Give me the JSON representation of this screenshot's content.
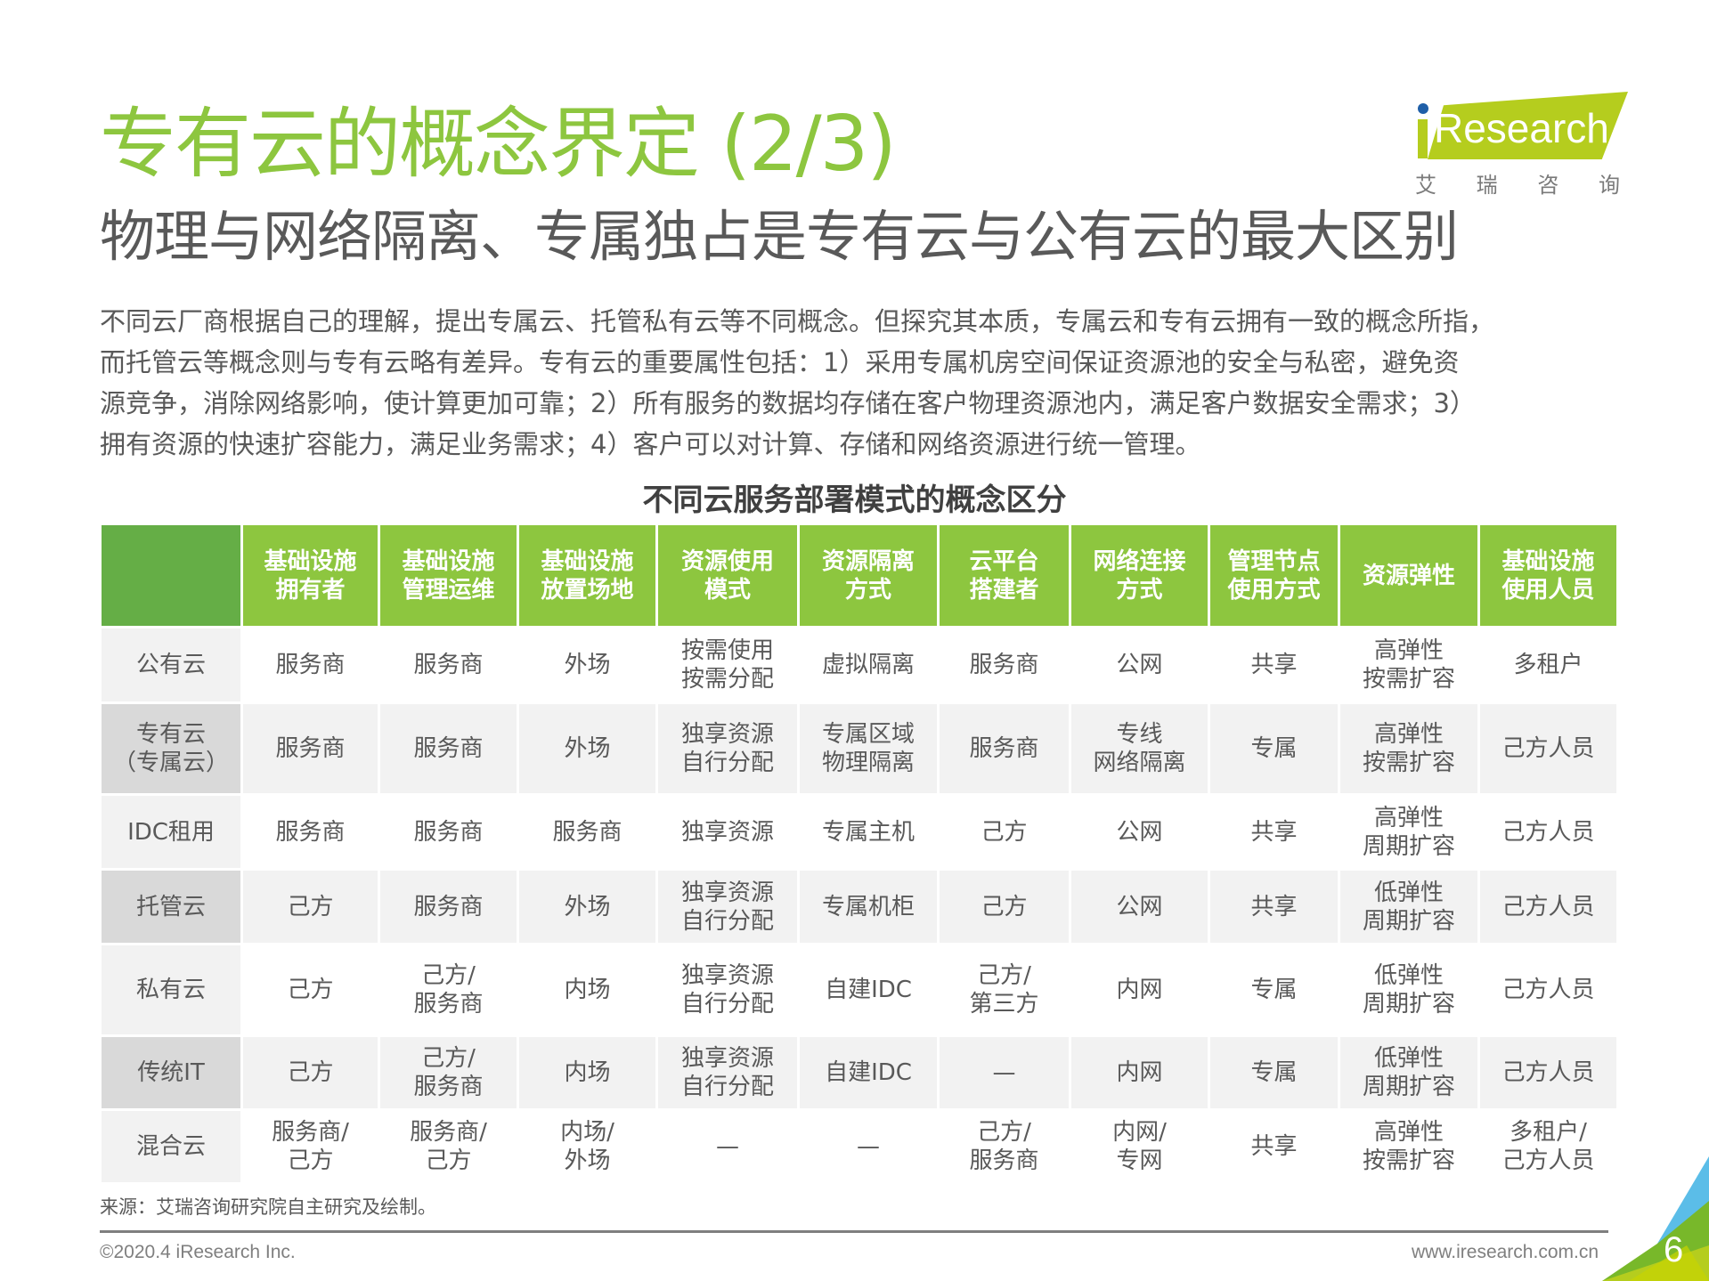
{
  "header": {
    "title": "专有云的概念界定 (2/3)",
    "subtitle": "物理与网络隔离、专属独占是专有云与公有云的最大区别"
  },
  "logo": {
    "wordmark": "Research",
    "chinese": [
      "艾",
      "瑞",
      "咨",
      "询"
    ]
  },
  "intro": {
    "lines": [
      "不同云厂商根据自己的理解，提出专属云、托管私有云等不同概念。但探究其本质，专属云和专有云拥有一致的概念所指，",
      "而托管云等概念则与专有云略有差异。专有云的重要属性包括：1）采用专属机房空间保证资源池的安全与私密，避免资",
      "源竞争，消除网络影响，使计算更加可靠；2）所有服务的数据均存储在客户物理资源池内，满足客户数据安全需求；3）",
      "拥有资源的快速扩容能力，满足业务需求；4）客户可以对计算、存储和网络资源进行统一管理。"
    ]
  },
  "table": {
    "title": "不同云服务部署模式的概念区分",
    "columns": [
      {
        "l1": "",
        "l2": ""
      },
      {
        "l1": "基础设施",
        "l2": "拥有者"
      },
      {
        "l1": "基础设施",
        "l2": "管理运维"
      },
      {
        "l1": "基础设施",
        "l2": "放置场地"
      },
      {
        "l1": "资源使用",
        "l2": "模式"
      },
      {
        "l1": "资源隔离",
        "l2": "方式"
      },
      {
        "l1": "云平台",
        "l2": "搭建者"
      },
      {
        "l1": "网络连接",
        "l2": "方式"
      },
      {
        "l1": "管理节点",
        "l2": "使用方式"
      },
      {
        "l1": "资源弹性",
        "l2": ""
      },
      {
        "l1": "基础设施",
        "l2": "使用人员"
      }
    ],
    "rows": [
      {
        "cells": [
          [
            "公有云"
          ],
          [
            "服务商"
          ],
          [
            "服务商"
          ],
          [
            "外场"
          ],
          [
            "按需使用",
            "按需分配"
          ],
          [
            "虚拟隔离"
          ],
          [
            "服务商"
          ],
          [
            "公网"
          ],
          [
            "共享"
          ],
          [
            "高弹性",
            "按需扩容"
          ],
          [
            "多租户"
          ]
        ]
      },
      {
        "cells": [
          [
            "专有云",
            "（专属云）"
          ],
          [
            "服务商"
          ],
          [
            "服务商"
          ],
          [
            "外场"
          ],
          [
            "独享资源",
            "自行分配"
          ],
          [
            "专属区域",
            "物理隔离"
          ],
          [
            "服务商"
          ],
          [
            "专线",
            "网络隔离"
          ],
          [
            "专属"
          ],
          [
            "高弹性",
            "按需扩容"
          ],
          [
            "己方人员"
          ]
        ]
      },
      {
        "cells": [
          [
            "IDC租用"
          ],
          [
            "服务商"
          ],
          [
            "服务商"
          ],
          [
            "服务商"
          ],
          [
            "独享资源"
          ],
          [
            "专属主机"
          ],
          [
            "己方"
          ],
          [
            "公网"
          ],
          [
            "共享"
          ],
          [
            "高弹性",
            "周期扩容"
          ],
          [
            "己方人员"
          ]
        ]
      },
      {
        "cells": [
          [
            "托管云"
          ],
          [
            "己方"
          ],
          [
            "服务商"
          ],
          [
            "外场"
          ],
          [
            "独享资源",
            "自行分配"
          ],
          [
            "专属机柜"
          ],
          [
            "己方"
          ],
          [
            "公网"
          ],
          [
            "共享"
          ],
          [
            "低弹性",
            "周期扩容"
          ],
          [
            "己方人员"
          ]
        ]
      },
      {
        "cells": [
          [
            "私有云"
          ],
          [
            "己方"
          ],
          [
            "己方/",
            "服务商"
          ],
          [
            "内场"
          ],
          [
            "独享资源",
            "自行分配"
          ],
          [
            "自建IDC"
          ],
          [
            "己方/",
            "第三方"
          ],
          [
            "内网"
          ],
          [
            "专属"
          ],
          [
            "低弹性",
            "周期扩容"
          ],
          [
            "己方人员"
          ]
        ]
      },
      {
        "cells": [
          [
            "传统IT"
          ],
          [
            "己方"
          ],
          [
            "己方/",
            "服务商"
          ],
          [
            "内场"
          ],
          [
            "独享资源",
            "自行分配"
          ],
          [
            "自建IDC"
          ],
          [
            "—"
          ],
          [
            "内网"
          ],
          [
            "专属"
          ],
          [
            "低弹性",
            "周期扩容"
          ],
          [
            "己方人员"
          ]
        ]
      },
      {
        "cells": [
          [
            "混合云"
          ],
          [
            "服务商/",
            "己方"
          ],
          [
            "服务商/",
            "己方"
          ],
          [
            "内场/",
            "外场"
          ],
          [
            "—"
          ],
          [
            "—"
          ],
          [
            "己方/",
            "服务商"
          ],
          [
            "内网/",
            "专网"
          ],
          [
            "共享"
          ],
          [
            "高弹性",
            "按需扩容"
          ],
          [
            "多租户/",
            "己方人员"
          ]
        ]
      }
    ]
  },
  "source": "来源：艾瑞咨询研究院自主研究及绘制。",
  "footer": {
    "copyright": "©2020.4 iResearch Inc.",
    "url": "www.iresearch.com.cn",
    "page_number": "6"
  },
  "colors": {
    "title_green": "#8DC63F",
    "header_green": "#8DC63F",
    "corner_green": "#65AE46",
    "logo_green": "#B5CD1E",
    "logo_blue": "#1F5FA8",
    "row_alt": "#F2F2F2",
    "rowhead_alt": "#D9D9D9"
  }
}
